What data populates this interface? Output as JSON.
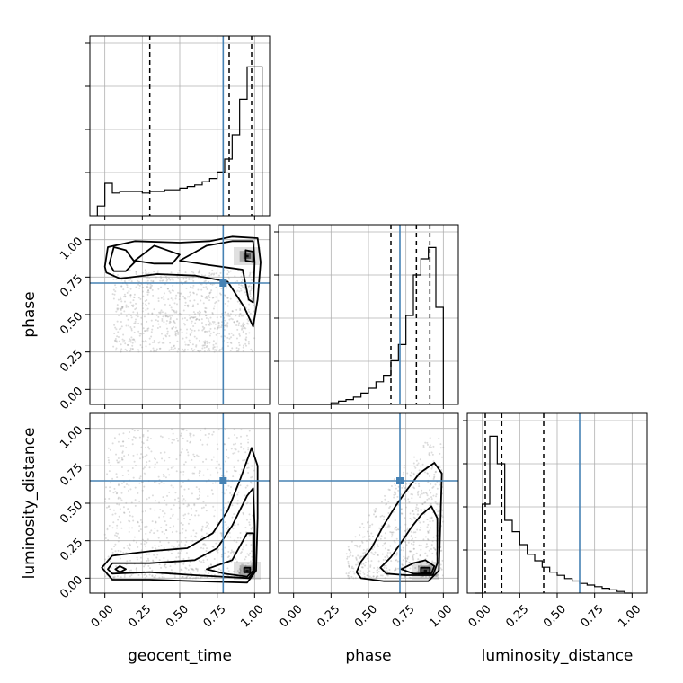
{
  "chart_data": {
    "type": "corner",
    "parameters": [
      "geocent_time",
      "phase",
      "luminosity_distance"
    ],
    "axis_range": [
      -0.1,
      1.1
    ],
    "ticks": [
      0.0,
      0.25,
      0.5,
      0.75,
      1.0
    ],
    "tick_labels": [
      "0.00",
      "0.25",
      "0.50",
      "0.75",
      "1.00"
    ],
    "xlabels": [
      "geocent_time",
      "phase",
      "luminosity_distance"
    ],
    "ylabels": [
      "",
      "phase",
      "luminosity_distance"
    ],
    "grid": true,
    "truths": {
      "geocent_time": 0.79,
      "phase": 0.71,
      "luminosity_distance": 0.65
    },
    "truth_color": "#4682b4",
    "histograms": [
      {
        "parameter": "geocent_time",
        "bin_edges": [
          -0.05,
          0.0,
          0.05,
          0.1,
          0.15,
          0.2,
          0.25,
          0.3,
          0.35,
          0.4,
          0.45,
          0.5,
          0.55,
          0.6,
          0.65,
          0.7,
          0.75,
          0.8,
          0.85,
          0.9,
          0.95,
          1.0,
          1.05
        ],
        "counts": [
          0.06,
          0.2,
          0.14,
          0.15,
          0.15,
          0.15,
          0.14,
          0.15,
          0.15,
          0.16,
          0.16,
          0.17,
          0.18,
          0.19,
          0.21,
          0.23,
          0.27,
          0.35,
          0.5,
          0.72,
          0.92,
          0.92
        ],
        "quantiles": [
          0.3,
          0.83,
          0.98
        ]
      },
      {
        "parameter": "phase",
        "bin_edges": [
          0.0,
          0.05,
          0.1,
          0.15,
          0.2,
          0.25,
          0.3,
          0.35,
          0.4,
          0.45,
          0.5,
          0.55,
          0.6,
          0.65,
          0.7,
          0.75,
          0.8,
          0.85,
          0.9,
          0.95,
          1.0
        ],
        "counts": [
          0.0,
          0.0,
          0.0,
          0.0,
          0.0,
          0.01,
          0.02,
          0.03,
          0.045,
          0.07,
          0.1,
          0.14,
          0.18,
          0.27,
          0.37,
          0.55,
          0.8,
          0.9,
          0.97,
          0.6
        ],
        "quantiles": [
          0.65,
          0.82,
          0.91
        ]
      },
      {
        "parameter": "luminosity_distance",
        "bin_edges": [
          -0.05,
          0.0,
          0.05,
          0.1,
          0.15,
          0.2,
          0.25,
          0.3,
          0.35,
          0.4,
          0.45,
          0.5,
          0.55,
          0.6,
          0.65,
          0.7,
          0.75,
          0.8,
          0.85,
          0.9,
          0.95,
          1.0
        ],
        "counts": [
          0.0,
          0.55,
          0.97,
          0.8,
          0.45,
          0.38,
          0.3,
          0.24,
          0.2,
          0.16,
          0.13,
          0.11,
          0.09,
          0.075,
          0.06,
          0.05,
          0.04,
          0.03,
          0.02,
          0.01,
          0.0
        ],
        "quantiles": [
          0.02,
          0.13,
          0.41
        ]
      }
    ],
    "density_panels": [
      {
        "x": "geocent_time",
        "y": "phase",
        "peak": [
          0.95,
          0.89
        ],
        "contours": [
          [
            [
              0.0,
              0.82
            ],
            [
              0.02,
              0.95
            ],
            [
              0.2,
              0.99
            ],
            [
              0.5,
              0.98
            ],
            [
              0.7,
              0.99
            ],
            [
              0.85,
              1.02
            ],
            [
              1.02,
              1.01
            ],
            [
              1.04,
              0.85
            ],
            [
              1.02,
              0.6
            ],
            [
              0.99,
              0.42
            ],
            [
              0.93,
              0.55
            ],
            [
              0.82,
              0.72
            ],
            [
              0.6,
              0.76
            ],
            [
              0.35,
              0.77
            ],
            [
              0.1,
              0.74
            ],
            [
              0.01,
              0.78
            ]
          ],
          [
            [
              0.03,
              0.84
            ],
            [
              0.06,
              0.95
            ],
            [
              0.14,
              0.93
            ],
            [
              0.2,
              0.85
            ],
            [
              0.14,
              0.79
            ],
            [
              0.06,
              0.79
            ]
          ],
          [
            [
              0.2,
              0.86
            ],
            [
              0.33,
              0.96
            ],
            [
              0.5,
              0.9
            ],
            [
              0.45,
              0.84
            ],
            [
              0.33,
              0.84
            ]
          ],
          [
            [
              0.5,
              0.86
            ],
            [
              0.68,
              0.96
            ],
            [
              0.85,
              0.99
            ],
            [
              0.99,
              0.99
            ],
            [
              1.0,
              0.85
            ],
            [
              0.99,
              0.58
            ],
            [
              0.96,
              0.6
            ],
            [
              0.92,
              0.8
            ],
            [
              0.7,
              0.83
            ]
          ],
          [
            [
              0.94,
              0.86
            ],
            [
              0.94,
              0.93
            ],
            [
              0.99,
              0.92
            ],
            [
              0.99,
              0.85
            ]
          ]
        ]
      },
      {
        "x": "geocent_time",
        "y": "luminosity_distance",
        "peak": [
          0.95,
          0.05
        ],
        "contours": [
          [
            [
              -0.02,
              0.07
            ],
            [
              0.05,
              0.15
            ],
            [
              0.3,
              0.18
            ],
            [
              0.55,
              0.2
            ],
            [
              0.72,
              0.3
            ],
            [
              0.82,
              0.45
            ],
            [
              0.9,
              0.65
            ],
            [
              0.98,
              0.87
            ],
            [
              1.02,
              0.75
            ],
            [
              1.02,
              0.4
            ],
            [
              1.01,
              0.05
            ],
            [
              0.95,
              -0.03
            ],
            [
              0.6,
              -0.02
            ],
            [
              0.3,
              -0.01
            ],
            [
              0.05,
              -0.01
            ]
          ],
          [
            [
              0.02,
              0.06
            ],
            [
              0.05,
              0.1
            ],
            [
              0.3,
              0.1
            ],
            [
              0.6,
              0.12
            ],
            [
              0.75,
              0.2
            ],
            [
              0.85,
              0.35
            ],
            [
              0.95,
              0.55
            ],
            [
              0.99,
              0.6
            ],
            [
              1.0,
              0.35
            ],
            [
              1.0,
              0.05
            ],
            [
              0.96,
              0.0
            ],
            [
              0.6,
              0.02
            ],
            [
              0.3,
              0.04
            ],
            [
              0.05,
              0.03
            ]
          ],
          [
            [
              0.07,
              0.06
            ],
            [
              0.1,
              0.08
            ],
            [
              0.14,
              0.06
            ],
            [
              0.1,
              0.04
            ]
          ],
          [
            [
              0.68,
              0.06
            ],
            [
              0.85,
              0.12
            ],
            [
              0.95,
              0.3
            ],
            [
              0.99,
              0.3
            ],
            [
              0.99,
              0.05
            ],
            [
              0.95,
              0.01
            ],
            [
              0.8,
              0.03
            ]
          ],
          [
            [
              0.93,
              0.04
            ],
            [
              0.93,
              0.07
            ],
            [
              0.97,
              0.07
            ],
            [
              0.97,
              0.04
            ]
          ]
        ]
      },
      {
        "x": "phase",
        "y": "luminosity_distance",
        "peak": [
          0.88,
          0.05
        ],
        "contours": [
          [
            [
              0.42,
              0.04
            ],
            [
              0.45,
              0.11
            ],
            [
              0.52,
              0.2
            ],
            [
              0.6,
              0.35
            ],
            [
              0.68,
              0.48
            ],
            [
              0.75,
              0.58
            ],
            [
              0.84,
              0.7
            ],
            [
              0.94,
              0.77
            ],
            [
              0.99,
              0.7
            ],
            [
              0.98,
              0.35
            ],
            [
              0.97,
              0.05
            ],
            [
              0.9,
              -0.02
            ],
            [
              0.6,
              -0.02
            ],
            [
              0.45,
              0.0
            ]
          ],
          [
            [
              0.58,
              0.07
            ],
            [
              0.65,
              0.14
            ],
            [
              0.72,
              0.24
            ],
            [
              0.78,
              0.33
            ],
            [
              0.85,
              0.42
            ],
            [
              0.92,
              0.48
            ],
            [
              0.96,
              0.4
            ],
            [
              0.96,
              0.1
            ],
            [
              0.93,
              0.02
            ],
            [
              0.75,
              0.02
            ],
            [
              0.62,
              0.03
            ]
          ],
          [
            [
              0.72,
              0.06
            ],
            [
              0.8,
              0.1
            ],
            [
              0.88,
              0.12
            ],
            [
              0.94,
              0.08
            ],
            [
              0.92,
              0.03
            ],
            [
              0.8,
              0.03
            ]
          ],
          [
            [
              0.85,
              0.035
            ],
            [
              0.85,
              0.07
            ],
            [
              0.91,
              0.07
            ],
            [
              0.91,
              0.035
            ]
          ]
        ]
      }
    ]
  }
}
